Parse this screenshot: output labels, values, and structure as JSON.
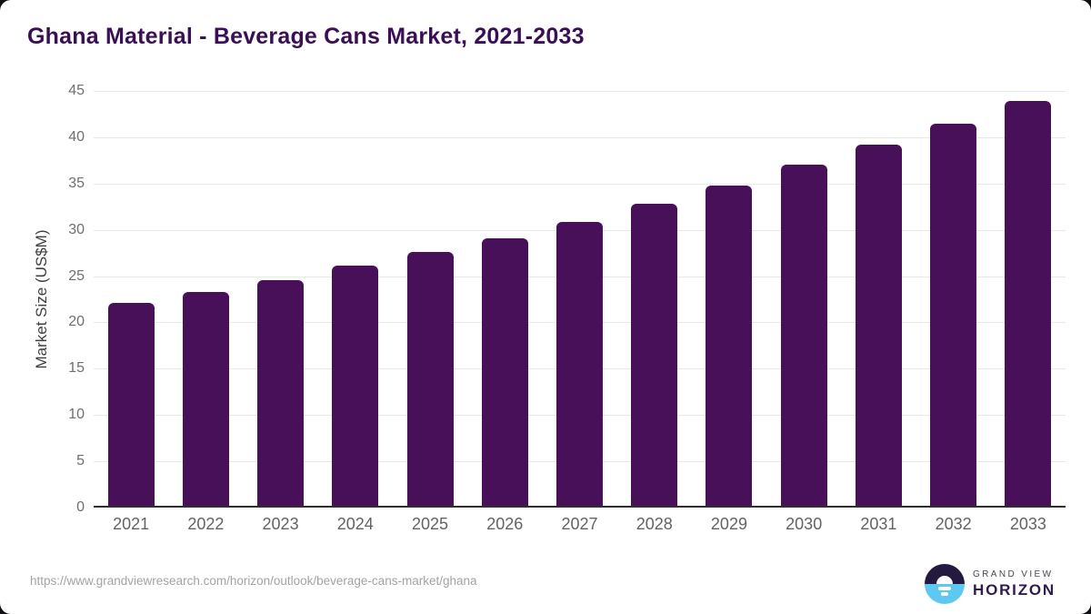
{
  "chart_data": {
    "type": "bar",
    "title": "Ghana Material - Beverage Cans Market, 2021-2033",
    "categories": [
      "2021",
      "2022",
      "2023",
      "2024",
      "2025",
      "2026",
      "2027",
      "2028",
      "2029",
      "2030",
      "2031",
      "2032",
      "2033"
    ],
    "values": [
      22.1,
      23.3,
      24.6,
      26.1,
      27.6,
      29.1,
      30.9,
      32.8,
      34.8,
      37.0,
      39.2,
      41.5,
      43.9
    ],
    "xlabel": "",
    "ylabel": "Market Size (US$M)",
    "ylim": [
      0,
      45
    ],
    "yticks": [
      0,
      5,
      10,
      15,
      20,
      25,
      30,
      35,
      40,
      45
    ],
    "grid": true,
    "legend": false,
    "bar_color": "#471058",
    "title_color": "#3a0f55"
  },
  "footer": {
    "source_url": "https://www.grandviewresearch.com/horizon/outlook/beverage-cans-market/ghana",
    "logo": {
      "top": "GRAND VIEW",
      "bottom": "HORIZON"
    }
  }
}
